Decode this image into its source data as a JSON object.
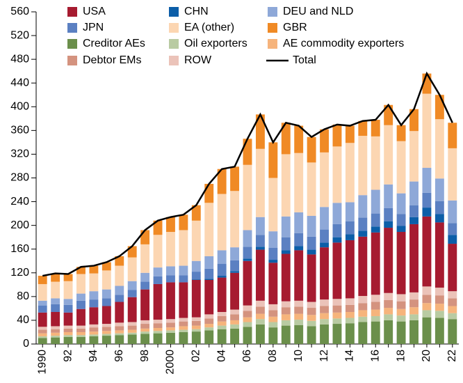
{
  "chart_data": {
    "type": "stacked_bar",
    "categories": [
      "1990",
      null,
      "92",
      null,
      "94",
      null,
      "96",
      null,
      "98",
      null,
      "2000",
      null,
      "02",
      null,
      "04",
      null,
      "06",
      null,
      "08",
      null,
      "10",
      null,
      "12",
      null,
      "14",
      null,
      "16",
      null,
      "18",
      null,
      "20",
      null,
      "22"
    ],
    "ylim": [
      0,
      560
    ],
    "yticks": [
      0,
      40,
      80,
      120,
      160,
      200,
      240,
      280,
      320,
      360,
      400,
      440,
      480,
      520,
      560
    ],
    "series": [
      {
        "name": "Creditor AEs",
        "color": "#6b8f4b",
        "values": [
          10,
          11,
          12,
          12,
          13,
          14,
          15,
          16,
          17,
          18,
          19,
          20,
          21,
          23,
          25,
          26,
          29,
          33,
          28,
          31,
          32,
          30,
          33,
          34,
          35,
          37,
          38,
          40,
          38,
          40,
          45,
          44,
          42
        ]
      },
      {
        "name": "Oil exporters",
        "color": "#b9cba2",
        "values": [
          3,
          3,
          3,
          3,
          3,
          3,
          3,
          3,
          4,
          4,
          4,
          4,
          4,
          5,
          6,
          7,
          8,
          9,
          9,
          9,
          9,
          9,
          9,
          9,
          9,
          9,
          9,
          10,
          10,
          10,
          12,
          12,
          10
        ]
      },
      {
        "name": "AE commodity exporters",
        "color": "#f6b47c",
        "values": [
          5,
          5,
          5,
          5,
          5,
          5,
          5,
          5,
          5,
          5,
          5,
          6,
          6,
          6,
          7,
          7,
          8,
          9,
          9,
          10,
          10,
          10,
          10,
          10,
          10,
          11,
          11,
          11,
          11,
          12,
          12,
          12,
          12
        ]
      },
      {
        "name": "Debtor EMs",
        "color": "#d4937f",
        "values": [
          6,
          6,
          6,
          6,
          7,
          7,
          7,
          7,
          8,
          8,
          8,
          8,
          8,
          9,
          9,
          10,
          11,
          12,
          11,
          12,
          12,
          12,
          12,
          12,
          12,
          12,
          13,
          13,
          13,
          13,
          14,
          14,
          13
        ]
      },
      {
        "name": "ROW",
        "color": "#ebc3b9",
        "values": [
          5,
          5,
          5,
          5,
          5,
          5,
          6,
          6,
          6,
          6,
          6,
          6,
          6,
          7,
          7,
          8,
          9,
          10,
          10,
          10,
          10,
          10,
          11,
          11,
          11,
          12,
          12,
          12,
          12,
          12,
          14,
          13,
          12
        ]
      },
      {
        "name": "USA",
        "color": "#a61b30",
        "values": [
          24,
          24,
          22,
          28,
          29,
          30,
          35,
          42,
          52,
          60,
          62,
          60,
          63,
          58,
          58,
          62,
          75,
          86,
          70,
          80,
          85,
          80,
          88,
          95,
          98,
          100,
          105,
          110,
          105,
          115,
          118,
          110,
          80
        ]
      },
      {
        "name": "CHN",
        "color": "#0c5ea8",
        "values": [
          0,
          0,
          0,
          0,
          0,
          0,
          0,
          0,
          0,
          0,
          0,
          0,
          1,
          2,
          3,
          3,
          4,
          5,
          5,
          6,
          7,
          8,
          8,
          9,
          10,
          10,
          10,
          11,
          10,
          12,
          15,
          14,
          15
        ]
      },
      {
        "name": "JPN",
        "color": "#5b80c2",
        "values": [
          12,
          13,
          13,
          14,
          13,
          13,
          12,
          12,
          13,
          13,
          12,
          12,
          13,
          17,
          20,
          18,
          20,
          20,
          20,
          22,
          22,
          22,
          22,
          22,
          22,
          22,
          22,
          22,
          20,
          20,
          25,
          22,
          20
        ]
      },
      {
        "name": "DEU and NLD",
        "color": "#8ea8d8",
        "values": [
          8,
          10,
          10,
          12,
          14,
          15,
          15,
          15,
          15,
          15,
          15,
          16,
          18,
          21,
          23,
          22,
          28,
          30,
          28,
          35,
          35,
          35,
          38,
          36,
          32,
          38,
          40,
          40,
          35,
          40,
          42,
          38,
          38
        ]
      },
      {
        "name": "EA (other)",
        "color": "#fcd6b2",
        "values": [
          28,
          28,
          30,
          33,
          30,
          32,
          34,
          40,
          48,
          55,
          58,
          60,
          68,
          90,
          95,
          95,
          110,
          115,
          90,
          105,
          100,
          90,
          92,
          95,
          100,
          100,
          90,
          100,
          88,
          85,
          125,
          100,
          88
        ]
      },
      {
        "name": "GBR",
        "color": "#f08a25",
        "values": [
          14,
          14,
          12,
          12,
          13,
          14,
          16,
          19,
          24,
          24,
          25,
          26,
          26,
          32,
          42,
          41,
          44,
          58,
          60,
          53,
          46,
          43,
          39,
          37,
          29,
          25,
          28,
          34,
          27,
          37,
          34,
          41,
          43
        ]
      },
      {
        "name": "Total",
        "type": "line",
        "color": "#000000",
        "values": [
          115,
          119,
          118,
          130,
          132,
          138,
          148,
          165,
          192,
          208,
          214,
          218,
          234,
          270,
          295,
          299,
          346,
          387,
          340,
          373,
          368,
          349,
          362,
          370,
          368,
          376,
          378,
          403,
          369,
          396,
          456,
          420,
          373
        ]
      }
    ]
  }
}
